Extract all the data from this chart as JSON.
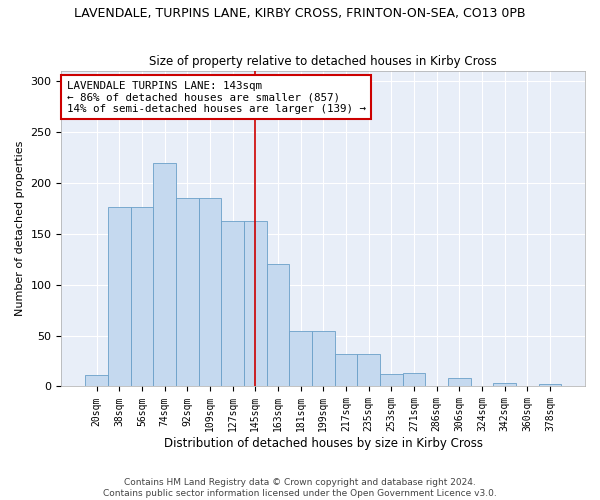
{
  "title": "LAVENDALE, TURPINS LANE, KIRBY CROSS, FRINTON-ON-SEA, CO13 0PB",
  "subtitle": "Size of property relative to detached houses in Kirby Cross",
  "xlabel": "Distribution of detached houses by size in Kirby Cross",
  "ylabel": "Number of detached properties",
  "categories": [
    "20sqm",
    "38sqm",
    "56sqm",
    "74sqm",
    "92sqm",
    "109sqm",
    "127sqm",
    "145sqm",
    "163sqm",
    "181sqm",
    "199sqm",
    "217sqm",
    "235sqm",
    "253sqm",
    "271sqm",
    "286sqm",
    "306sqm",
    "324sqm",
    "342sqm",
    "360sqm",
    "378sqm"
  ],
  "values": [
    11,
    176,
    176,
    220,
    185,
    185,
    163,
    163,
    120,
    55,
    55,
    32,
    32,
    12,
    13,
    0,
    8,
    0,
    3,
    0,
    2
  ],
  "bar_color": "#c5d9ef",
  "bar_edge_color": "#6a9fc8",
  "vline_index": 7,
  "vline_color": "#cc0000",
  "annotation_line1": "LAVENDALE TURPINS LANE: 143sqm",
  "annotation_line2": "← 86% of detached houses are smaller (857)",
  "annotation_line3": "14% of semi-detached houses are larger (139) →",
  "annotation_box_facecolor": "#ffffff",
  "annotation_box_edgecolor": "#cc0000",
  "footer": "Contains HM Land Registry data © Crown copyright and database right 2024.\nContains public sector information licensed under the Open Government Licence v3.0.",
  "bg_color": "#e8eef8",
  "ylim": [
    0,
    310
  ],
  "yticks": [
    0,
    50,
    100,
    150,
    200,
    250,
    300
  ],
  "figsize": [
    6.0,
    5.0
  ],
  "dpi": 100
}
